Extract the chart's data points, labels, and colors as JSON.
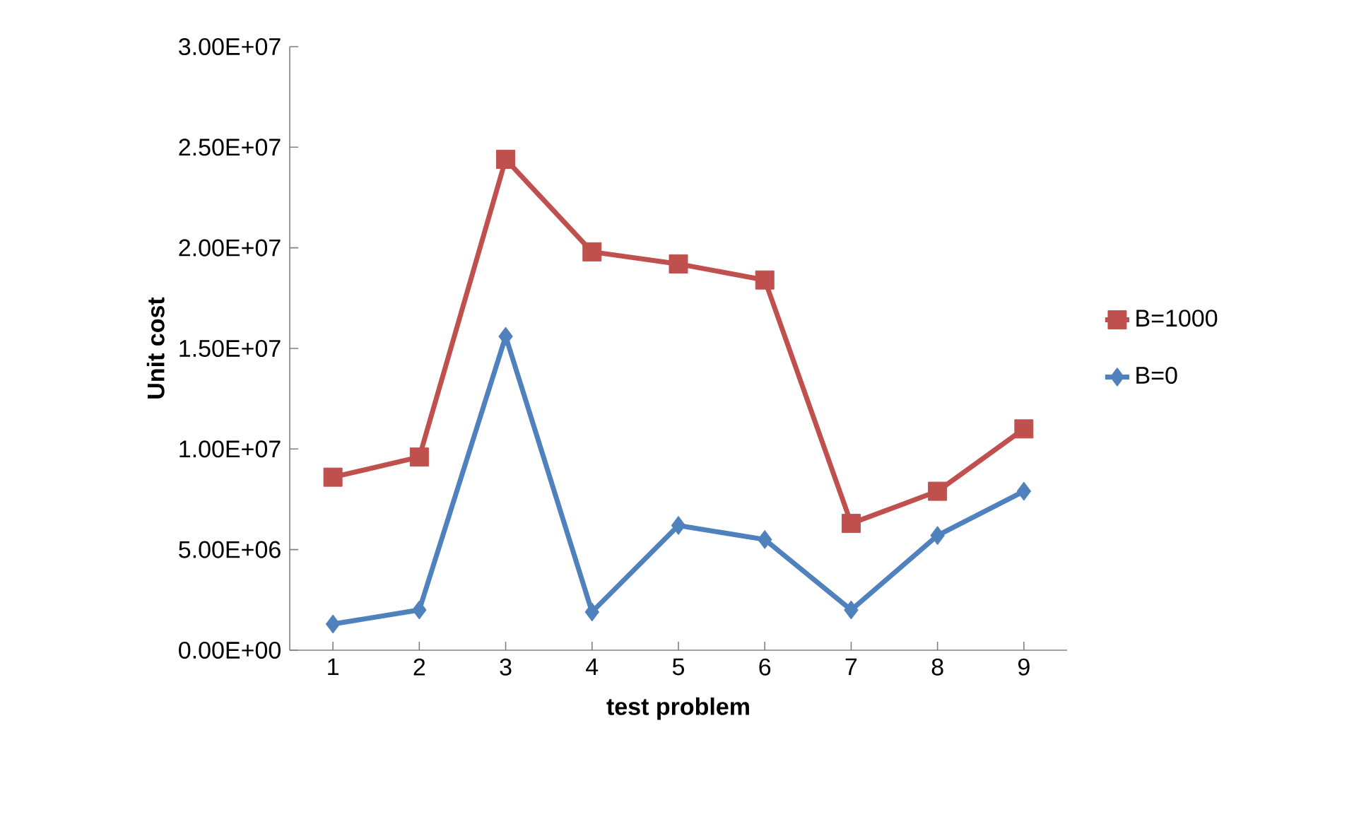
{
  "chart_data": {
    "type": "line",
    "xlabel": "test problem",
    "ylabel": "Unit cost",
    "categories": [
      "1",
      "2",
      "3",
      "4",
      "5",
      "6",
      "7",
      "8",
      "9"
    ],
    "series": [
      {
        "name": "B=1000",
        "color": "#c0504d",
        "marker": "square",
        "values": [
          8600000,
          9600000,
          24400000,
          19800000,
          19200000,
          18400000,
          6300000,
          7900000,
          11000000
        ]
      },
      {
        "name": "B=0",
        "color": "#4f81bd",
        "marker": "diamond",
        "values": [
          1300000,
          2000000,
          15600000,
          1900000,
          6200000,
          5500000,
          2000000,
          5700000,
          7900000
        ]
      }
    ],
    "ylim": [
      0,
      30000000
    ],
    "yticks": [
      {
        "value": 0,
        "label": "0.00E+00"
      },
      {
        "value": 5000000,
        "label": "5.00E+06"
      },
      {
        "value": 10000000,
        "label": "1.00E+07"
      },
      {
        "value": 15000000,
        "label": "1.50E+07"
      },
      {
        "value": 20000000,
        "label": "2.00E+07"
      },
      {
        "value": 25000000,
        "label": "2.50E+07"
      },
      {
        "value": 30000000,
        "label": "3.00E+07"
      }
    ],
    "grid": false,
    "legend": "right"
  }
}
